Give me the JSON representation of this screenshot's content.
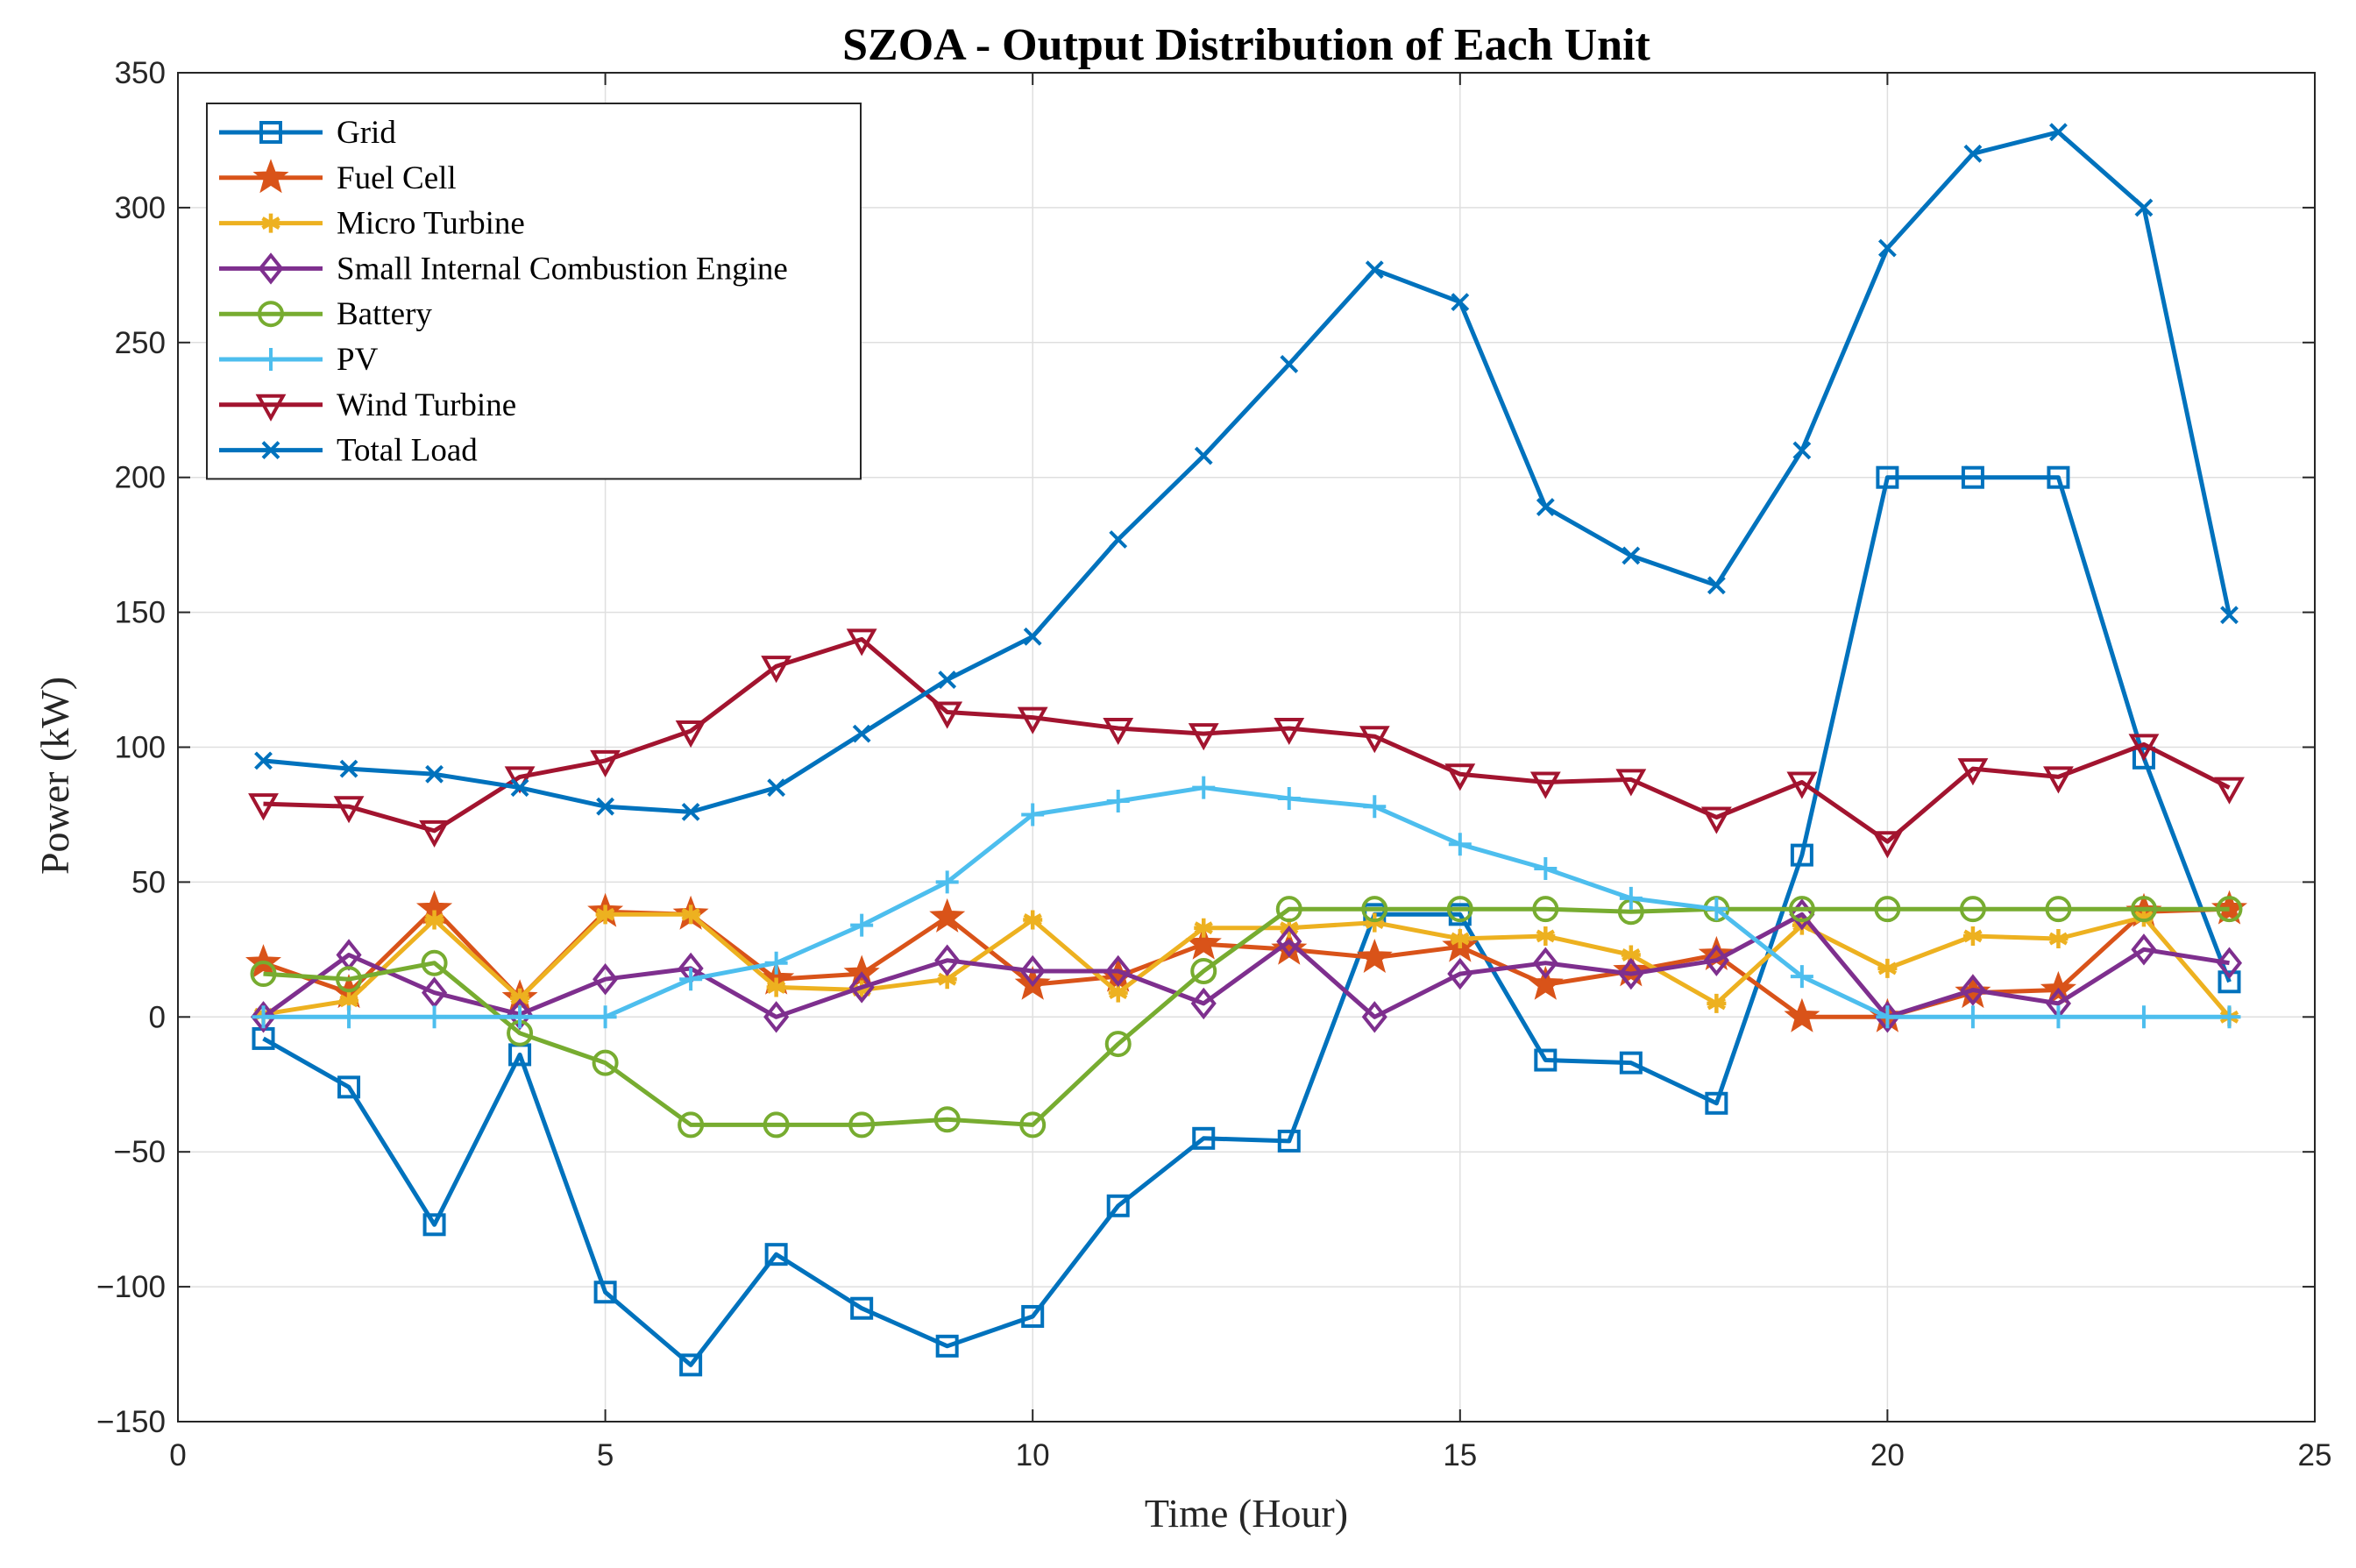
{
  "chart_data": {
    "type": "line",
    "title": "SZOA - Output Distribution of Each Unit",
    "xlabel": "Time (Hour)",
    "ylabel": "Power (kW)",
    "xlim": [
      0,
      25
    ],
    "ylim": [
      -150,
      350
    ],
    "xticks": [
      0,
      5,
      10,
      15,
      20,
      25
    ],
    "yticks": [
      -150,
      -100,
      -50,
      0,
      50,
      100,
      150,
      200,
      250,
      300,
      350
    ],
    "xtick_labels": [
      "0",
      "5",
      "10",
      "15",
      "20",
      "25"
    ],
    "ytick_labels": [
      "−150",
      "−100",
      "−50",
      "0",
      "50",
      "100",
      "150",
      "200",
      "250",
      "300",
      "350"
    ],
    "grid": true,
    "legend_position": "top-left",
    "x": [
      1,
      2,
      3,
      4,
      5,
      6,
      7,
      8,
      9,
      10,
      11,
      12,
      13,
      14,
      15,
      16,
      17,
      18,
      19,
      20,
      21,
      22,
      23,
      24
    ],
    "series": [
      {
        "name": "Grid",
        "color": "#0072BD",
        "marker": "square",
        "values": [
          -8,
          -26,
          -77,
          -14,
          -102,
          -129,
          -88,
          -108,
          -122,
          -111,
          -70,
          -45,
          -46,
          38,
          38,
          -16,
          -17,
          -32,
          60,
          200,
          200,
          200,
          96,
          13
        ]
      },
      {
        "name": "Fuel Cell",
        "color": "#D95319",
        "marker": "pentagram",
        "values": [
          20,
          9,
          40,
          7,
          39,
          38,
          14,
          16,
          37,
          12,
          15,
          27,
          25,
          22,
          26,
          12,
          17,
          23,
          0,
          0,
          9,
          10,
          39,
          40
        ]
      },
      {
        "name": "Micro Turbine",
        "color": "#EDB120",
        "marker": "asterisk",
        "values": [
          1,
          6,
          36,
          7,
          38,
          38,
          11,
          10,
          14,
          36,
          9,
          33,
          33,
          35,
          29,
          30,
          23,
          5,
          34,
          18,
          30,
          29,
          37,
          0
        ]
      },
      {
        "name": "Small Internal Combustion Engine",
        "color": "#7E2F8E",
        "marker": "diamond",
        "values": [
          0,
          23,
          9,
          1,
          14,
          18,
          0,
          11,
          21,
          17,
          17,
          5,
          28,
          0,
          16,
          20,
          16,
          21,
          38,
          0,
          10,
          5,
          25,
          20
        ]
      },
      {
        "name": "Battery",
        "color": "#77AC30",
        "marker": "circle",
        "values": [
          16,
          14,
          20,
          -6,
          -17,
          -40,
          -40,
          -40,
          -38,
          -40,
          -10,
          17,
          40,
          40,
          40,
          40,
          39,
          40,
          40,
          40,
          40,
          40,
          40,
          40
        ]
      },
      {
        "name": "PV",
        "color": "#4DBEEE",
        "marker": "plus",
        "values": [
          0,
          0,
          0,
          0,
          0,
          14,
          20,
          34,
          50,
          75,
          80,
          85,
          81,
          78,
          64,
          55,
          44,
          40,
          15,
          0,
          0,
          0,
          0,
          0
        ]
      },
      {
        "name": "Wind Turbine",
        "color": "#A2142F",
        "marker": "triangle-down",
        "values": [
          79,
          78,
          69,
          89,
          95,
          106,
          130,
          140,
          113,
          111,
          107,
          105,
          107,
          104,
          90,
          87,
          88,
          74,
          87,
          65,
          92,
          89,
          101,
          85
        ]
      },
      {
        "name": "Total Load",
        "color": "#0072BD",
        "marker": "x",
        "values": [
          95,
          92,
          90,
          85,
          78,
          76,
          85,
          105,
          125,
          141,
          177,
          208,
          242,
          277,
          265,
          189,
          171,
          160,
          210,
          285,
          320,
          328,
          300,
          149
        ]
      }
    ]
  }
}
